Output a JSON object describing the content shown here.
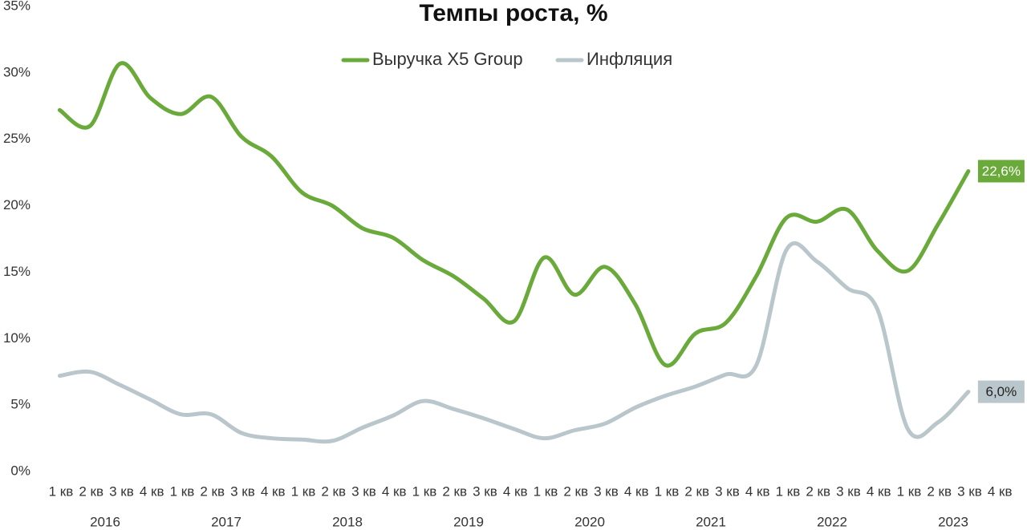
{
  "chart_data": {
    "type": "line",
    "title": "Темпы роста, %",
    "categories": [
      "1 кв",
      "2 кв",
      "3 кв",
      "4 кв",
      "1 кв",
      "2 кв",
      "3 кв",
      "4 кв",
      "1 кв",
      "2 кв",
      "3 кв",
      "4 кв",
      "1 кв",
      "2 кв",
      "3 кв",
      "4 кв",
      "1 кв",
      "2 кв",
      "3 кв",
      "4 кв",
      "1 кв",
      "2 кв",
      "3 кв",
      "4 кв",
      "1 кв",
      "2 кв",
      "3 кв",
      "4 кв",
      "1 кв",
      "2 кв",
      "3 кв",
      "4 кв"
    ],
    "groups": [
      "2016",
      "2017",
      "2018",
      "2019",
      "2020",
      "2021",
      "2022",
      "2023"
    ],
    "series": [
      {
        "name": "Выручка X5 Group",
        "color": "#6aaa3a",
        "values": [
          27.2,
          26.0,
          30.7,
          28.1,
          26.9,
          28.2,
          25.2,
          23.7,
          21.0,
          20.0,
          18.3,
          17.6,
          15.9,
          14.7,
          13.0,
          11.3,
          16.1,
          13.3,
          15.4,
          12.6,
          8.0,
          10.4,
          11.2,
          14.7,
          19.1,
          18.8,
          19.7,
          16.6,
          15.1,
          18.6,
          22.6,
          null
        ],
        "value_labels": [
          null,
          null,
          null,
          null,
          null,
          null,
          null,
          null,
          null,
          null,
          null,
          null,
          null,
          null,
          null,
          null,
          null,
          null,
          null,
          null,
          null,
          null,
          null,
          null,
          null,
          null,
          null,
          null,
          null,
          null,
          "22,6%",
          null
        ]
      },
      {
        "name": "Инфляция",
        "color": "#b9c6cc",
        "values": [
          7.2,
          7.5,
          6.5,
          5.4,
          4.3,
          4.3,
          2.9,
          2.5,
          2.4,
          2.3,
          3.3,
          4.2,
          5.3,
          4.7,
          4.0,
          3.2,
          2.5,
          3.1,
          3.6,
          4.8,
          5.7,
          6.4,
          7.3,
          8.0,
          16.7,
          15.8,
          13.8,
          12.2,
          3.2,
          3.7,
          6.0,
          null
        ],
        "value_labels": [
          null,
          null,
          null,
          null,
          null,
          null,
          null,
          null,
          null,
          null,
          null,
          null,
          null,
          null,
          null,
          null,
          null,
          null,
          null,
          null,
          null,
          null,
          null,
          null,
          null,
          null,
          null,
          null,
          null,
          null,
          "6,0%",
          null
        ]
      }
    ],
    "ylim": [
      0,
      35
    ],
    "yticks": [
      {
        "value": 0,
        "label": "0%"
      },
      {
        "value": 5,
        "label": "5%"
      },
      {
        "value": 10,
        "label": "10%"
      },
      {
        "value": 15,
        "label": "15%"
      },
      {
        "value": 20,
        "label": "20%"
      },
      {
        "value": 25,
        "label": "25%"
      },
      {
        "value": 30,
        "label": "30%"
      },
      {
        "value": 35,
        "label": "35%"
      }
    ],
    "grid": false
  }
}
